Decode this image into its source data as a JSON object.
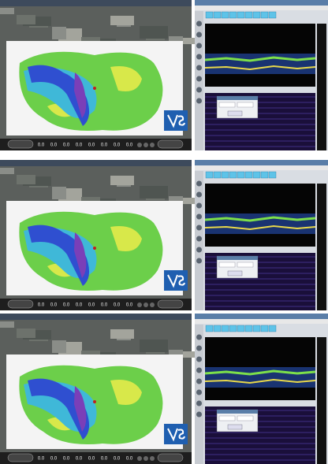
{
  "panels": [
    {
      "readouts": [
        "0.0",
        "0.0",
        "0.0",
        "0.0",
        "0.0",
        "0.0",
        "0.0",
        "0.0"
      ]
    },
    {
      "readouts": [
        "0.0",
        "0.0",
        "0.0",
        "0.0",
        "0.0",
        "0.0",
        "0.0",
        "0.0"
      ]
    },
    {
      "readouts": [
        "0.0",
        "0.0",
        "0.0",
        "0.0",
        "0.0",
        "0.0",
        "0.0",
        "0.0"
      ]
    }
  ]
}
